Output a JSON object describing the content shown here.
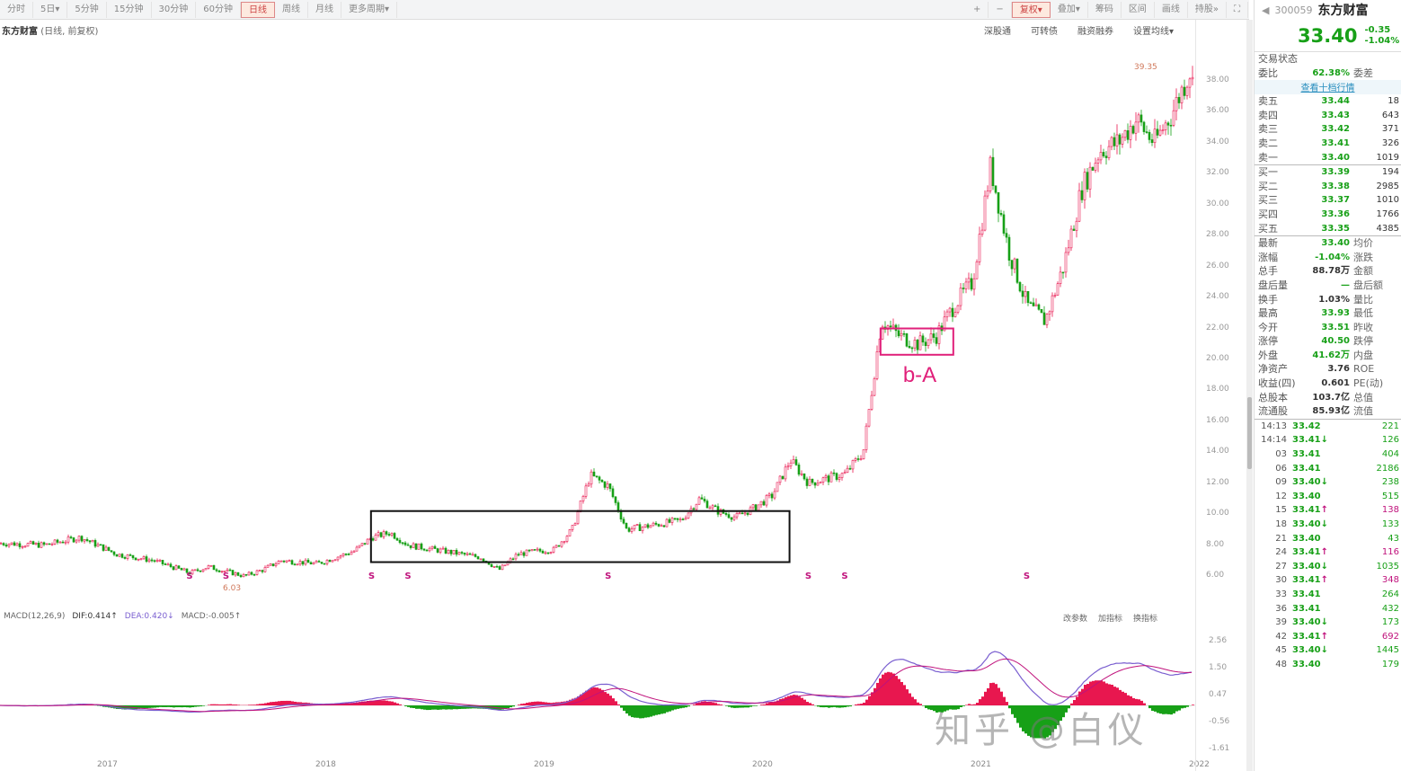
{
  "toolbar": {
    "periods": [
      "分时",
      "5日▾",
      "5分钟",
      "15分钟",
      "30分钟",
      "60分钟",
      "日线",
      "周线",
      "月线",
      "更多周期▾"
    ],
    "selected": "日线",
    "right": [
      "+",
      "−",
      "复权▾",
      "叠加▾",
      "筹码",
      "区间",
      "画线",
      "持股»",
      "⛶"
    ]
  },
  "chart_title": {
    "name": "东方财富",
    "mode": "(日线, 前复权)"
  },
  "chart_links": [
    "深股通",
    "可转债",
    "融资融券",
    "设置均线▾"
  ],
  "colors": {
    "up": "#e8174f",
    "down": "#17a017",
    "dif": "#7a5fd0",
    "dea": "#c0127c",
    "box1": "#111111",
    "box2": "#e0207a"
  },
  "chart_data": {
    "type": "candlestick",
    "y_ticks": [
      "38.00",
      "36.00",
      "34.00",
      "32.00",
      "30.00",
      "28.00",
      "26.00",
      "24.00",
      "22.00",
      "20.00",
      "18.00",
      "16.00",
      "14.00",
      "12.00",
      "10.00",
      "8.00",
      "6.00"
    ],
    "ylim": [
      6,
      38
    ],
    "x_ticks": [
      "2017",
      "2018",
      "2019",
      "2020",
      "2021",
      "2022"
    ],
    "close_path": [
      [
        "2016-07",
        8.1
      ],
      [
        "2016-09",
        8.0
      ],
      [
        "2016-11",
        8.5
      ],
      [
        "2017-01",
        7.4
      ],
      [
        "2017-03",
        7.0
      ],
      [
        "2017-05",
        6.2
      ],
      [
        "2017-06",
        6.6
      ],
      [
        "2017-08",
        6.0
      ],
      [
        "2017-09",
        6.4
      ],
      [
        "2017-10",
        7.0
      ],
      [
        "2017-12",
        6.8
      ],
      [
        "2018-01",
        7.2
      ],
      [
        "2018-02",
        7.6
      ],
      [
        "2018-03",
        8.5
      ],
      [
        "2018-04",
        8.8
      ],
      [
        "2018-05",
        8.0
      ],
      [
        "2018-07",
        7.6
      ],
      [
        "2018-09",
        7.2
      ],
      [
        "2018-10",
        6.4
      ],
      [
        "2018-11",
        7.4
      ],
      [
        "2018-12",
        7.6
      ],
      [
        "2019-01",
        7.7
      ],
      [
        "2019-02",
        9.0
      ],
      [
        "2019-03",
        12.5
      ],
      [
        "2019-04",
        11.8
      ],
      [
        "2019-05",
        9.0
      ],
      [
        "2019-07",
        9.4
      ],
      [
        "2019-08",
        9.6
      ],
      [
        "2019-09",
        11.0
      ],
      [
        "2019-10",
        10.2
      ],
      [
        "2019-11",
        9.8
      ],
      [
        "2019-12",
        10.4
      ],
      [
        "2020-01",
        11.2
      ],
      [
        "2020-02",
        13.5
      ],
      [
        "2020-03",
        12.0
      ],
      [
        "2020-05",
        12.6
      ],
      [
        "2020-06",
        14.0
      ],
      [
        "2020-07",
        22.5
      ],
      [
        "2020-08",
        21.5
      ],
      [
        "2020-09",
        21.0
      ],
      [
        "2020-10",
        21.5
      ],
      [
        "2020-11",
        23.5
      ],
      [
        "2020-12",
        25.0
      ],
      [
        "2021-01",
        32.5
      ],
      [
        "2021-02",
        27.0
      ],
      [
        "2021-03",
        23.5
      ],
      [
        "2021-04",
        22.5
      ],
      [
        "2021-05",
        26.0
      ],
      [
        "2021-06",
        31.0
      ],
      [
        "2021-07",
        33.5
      ],
      [
        "2021-08",
        34.0
      ],
      [
        "2021-09",
        35.5
      ],
      [
        "2021-10",
        34.0
      ],
      [
        "2021-11",
        36.0
      ],
      [
        "2021-12",
        38.8
      ],
      [
        "2021-12-31",
        33.4
      ]
    ],
    "high_label": "39.35",
    "low_label": "6.03",
    "signal_markers": [
      "2017-05",
      "2017-07",
      "2018-03",
      "2018-05",
      "2019-04",
      "2020-03",
      "2020-05",
      "2021-03"
    ],
    "signal_text": "S",
    "annotations": [
      {
        "type": "box",
        "from": "2018-03",
        "to": "2020-02",
        "low": 6.9,
        "high": 10.2
      },
      {
        "type": "box",
        "from": "2020-07",
        "to": "2020-11",
        "low": 20.3,
        "high": 22.0,
        "label": "b-A"
      }
    ]
  },
  "macd": {
    "label": "MACD(12,26,9)",
    "dif": "DIF:0.414↑",
    "dea": "DEA:0.420↓",
    "macd": "MACD:-0.005↑",
    "buttons": [
      "改参数",
      "加指标",
      "换指标"
    ],
    "y_ticks": [
      "2.56",
      "1.50",
      "0.47",
      "-0.56",
      "-1.61"
    ]
  },
  "quote": {
    "code": "300059",
    "name": "东方财富",
    "price": "33.40",
    "change": "-0.35",
    "pct": "-1.04%",
    "status": "交易状态",
    "weibi_label": "委比",
    "weibi": "62.38%",
    "weicha_label": "委差",
    "link": "查看十档行情",
    "asks": [
      [
        "卖五",
        "33.44",
        "18"
      ],
      [
        "卖四",
        "33.43",
        "643"
      ],
      [
        "卖三",
        "33.42",
        "371"
      ],
      [
        "卖二",
        "33.41",
        "326"
      ],
      [
        "卖一",
        "33.40",
        "1019"
      ]
    ],
    "bids": [
      [
        "买一",
        "33.39",
        "194"
      ],
      [
        "买二",
        "33.38",
        "2985"
      ],
      [
        "买三",
        "33.37",
        "1010"
      ],
      [
        "买四",
        "33.36",
        "1766"
      ],
      [
        "买五",
        "33.35",
        "4385"
      ]
    ],
    "stats": [
      [
        "最新",
        "33.40",
        "均价"
      ],
      [
        "涨幅",
        "-1.04%",
        "涨跌"
      ],
      [
        "总手",
        "88.78万",
        "金额"
      ],
      [
        "盘后量",
        "—",
        "盘后额"
      ],
      [
        "换手",
        "1.03%",
        "量比"
      ],
      [
        "最高",
        "33.93",
        "最低"
      ],
      [
        "今开",
        "33.51",
        "昨收"
      ],
      [
        "涨停",
        "40.50",
        "跌停"
      ],
      [
        "外盘",
        "41.62万",
        "内盘"
      ],
      [
        "净资产",
        "3.76",
        "ROE"
      ],
      [
        "收益(四)",
        "0.601",
        "PE(动)"
      ],
      [
        "总股本",
        "103.7亿",
        "总值"
      ],
      [
        "流通股",
        "85.93亿",
        "流值"
      ]
    ],
    "ticks": [
      [
        "14:13",
        "33.42",
        "",
        "221"
      ],
      [
        "14:14",
        "33.41",
        "↓",
        "126"
      ],
      [
        "03",
        "33.41",
        "",
        "404"
      ],
      [
        "06",
        "33.41",
        "",
        "2186"
      ],
      [
        "09",
        "33.40",
        "↓",
        "238"
      ],
      [
        "12",
        "33.40",
        "",
        "515"
      ],
      [
        "15",
        "33.41",
        "↑",
        "138"
      ],
      [
        "18",
        "33.40",
        "↓",
        "133"
      ],
      [
        "21",
        "33.40",
        "",
        "43"
      ],
      [
        "24",
        "33.41",
        "↑",
        "116"
      ],
      [
        "27",
        "33.40",
        "↓",
        "1035"
      ],
      [
        "30",
        "33.41",
        "↑",
        "348"
      ],
      [
        "33",
        "33.41",
        "",
        "264"
      ],
      [
        "36",
        "33.41",
        "",
        "432"
      ],
      [
        "39",
        "33.40",
        "↓",
        "173"
      ],
      [
        "42",
        "33.41",
        "↑",
        "692"
      ],
      [
        "45",
        "33.40",
        "↓",
        "1445"
      ],
      [
        "48",
        "33.40",
        "",
        "179"
      ]
    ]
  },
  "watermark": "知乎 @白仪"
}
